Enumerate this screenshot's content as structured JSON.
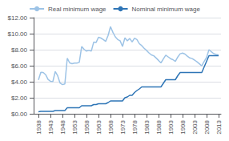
{
  "chart_data": {
    "type": "line",
    "x": [
      1938,
      1939,
      1940,
      1941,
      1942,
      1943,
      1944,
      1945,
      1946,
      1947,
      1948,
      1949,
      1950,
      1951,
      1952,
      1953,
      1954,
      1955,
      1956,
      1957,
      1958,
      1959,
      1960,
      1961,
      1962,
      1963,
      1964,
      1965,
      1966,
      1967,
      1968,
      1969,
      1970,
      1971,
      1972,
      1973,
      1974,
      1975,
      1976,
      1977,
      1978,
      1979,
      1980,
      1981,
      1982,
      1983,
      1984,
      1985,
      1986,
      1987,
      1988,
      1989,
      1990,
      1991,
      1992,
      1993,
      1994,
      1995,
      1996,
      1997,
      1998,
      1999,
      2000,
      2001,
      2002,
      2003,
      2004,
      2005,
      2006,
      2007,
      2008,
      2009,
      2010,
      2011,
      2012,
      2013
    ],
    "series": [
      {
        "name": "Real minimum wage",
        "color": "#9DC3E6",
        "values": [
          4.22,
          5.18,
          5.15,
          4.88,
          4.28,
          4.06,
          4.03,
          5.27,
          4.76,
          3.83,
          3.64,
          3.73,
          6.93,
          6.35,
          6.25,
          6.32,
          6.33,
          6.41,
          8.39,
          8.05,
          7.82,
          7.91,
          7.81,
          8.94,
          8.89,
          9.55,
          9.45,
          9.27,
          9.04,
          9.77,
          10.87,
          10.16,
          9.6,
          9.27,
          9.11,
          8.4,
          9.47,
          9.1,
          9.41,
          8.96,
          9.44,
          9.27,
          8.75,
          8.51,
          8.17,
          7.91,
          7.6,
          7.35,
          7.24,
          6.96,
          6.66,
          6.35,
          6.84,
          7.31,
          7.1,
          6.88,
          6.75,
          6.53,
          7.08,
          7.49,
          7.57,
          7.45,
          7.19,
          6.97,
          6.89,
          6.7,
          6.49,
          6.24,
          5.98,
          6.53,
          7.03,
          8.0,
          7.73,
          7.5,
          7.4,
          7.32
        ]
      },
      {
        "name": "Nominal minimum wage",
        "color": "#2E75B6",
        "values": [
          0.25,
          0.3,
          0.3,
          0.3,
          0.3,
          0.3,
          0.3,
          0.4,
          0.4,
          0.4,
          0.4,
          0.4,
          0.75,
          0.75,
          0.75,
          0.75,
          0.75,
          0.75,
          1.0,
          1.0,
          1.0,
          1.0,
          1.0,
          1.15,
          1.15,
          1.25,
          1.25,
          1.25,
          1.25,
          1.4,
          1.6,
          1.6,
          1.6,
          1.6,
          1.6,
          1.6,
          2.0,
          2.1,
          2.3,
          2.3,
          2.65,
          2.9,
          3.1,
          3.35,
          3.35,
          3.35,
          3.35,
          3.35,
          3.35,
          3.35,
          3.35,
          3.35,
          3.8,
          4.25,
          4.25,
          4.25,
          4.25,
          4.25,
          4.75,
          5.15,
          5.15,
          5.15,
          5.15,
          5.15,
          5.15,
          5.15,
          5.15,
          5.15,
          5.15,
          5.85,
          6.55,
          7.25,
          7.25,
          7.25,
          7.25,
          7.25
        ]
      }
    ],
    "xlim": [
      1936,
      2014
    ],
    "xticks": [
      1938,
      1943,
      1948,
      1953,
      1958,
      1963,
      1968,
      1973,
      1978,
      1983,
      1988,
      1993,
      1998,
      2003,
      2008,
      2013
    ],
    "ylim": [
      0,
      12
    ],
    "yticks": [
      {
        "value": 0,
        "label": "$0.00"
      },
      {
        "value": 2,
        "label": "$2.00"
      },
      {
        "value": 4,
        "label": "$4.00"
      },
      {
        "value": 6,
        "label": "$6.00"
      },
      {
        "value": 8,
        "label": "$8.00"
      },
      {
        "value": 10,
        "label": "$10.00"
      },
      {
        "value": 12,
        "label": "$12.00"
      }
    ],
    "grid": true,
    "legend": "top"
  }
}
